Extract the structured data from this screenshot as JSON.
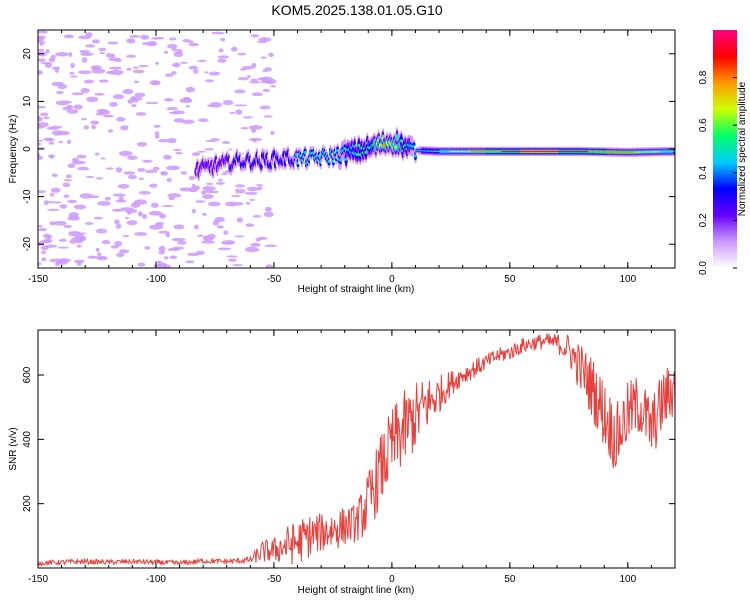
{
  "title": "KOM5.2025.138.01.05.G10",
  "chart_data": [
    {
      "type": "heatmap",
      "xlabel": "Height of straight line (km)",
      "ylabel": "Frequency (Hz)",
      "xlim": [
        -150,
        120
      ],
      "ylim": [
        -25,
        25
      ],
      "xticks": [
        -150,
        -100,
        -50,
        0,
        50,
        100
      ],
      "yticks": [
        -20,
        -10,
        0,
        10,
        20
      ],
      "colorbar": {
        "label": "Normalized spectral amplitude",
        "range": [
          0,
          1
        ],
        "ticks": [
          0.0,
          0.2,
          0.4,
          0.6,
          0.8
        ],
        "colors": [
          "#ffffff",
          "#cc99ff",
          "#6600ff",
          "#0000ff",
          "#00ccff",
          "#00ff66",
          "#ccff00",
          "#ff9900",
          "#ff0000",
          "#ff0080"
        ]
      },
      "ridge": {
        "x": [
          -83,
          -75,
          -65,
          -55,
          -45,
          -35,
          -25,
          -15,
          -8,
          -3,
          2,
          6,
          10,
          20,
          40,
          60,
          80,
          100,
          120
        ],
        "y": [
          -4.5,
          -3.5,
          -2.5,
          -2.5,
          -2.0,
          -2.0,
          -1.5,
          -0.5,
          0.5,
          1.3,
          1.5,
          0.3,
          -0.3,
          -0.5,
          -0.5,
          -0.5,
          -0.5,
          -0.7,
          -0.5
        ],
        "amplitude": [
          0.25,
          0.25,
          0.3,
          0.3,
          0.35,
          0.45,
          0.45,
          0.5,
          0.55,
          0.75,
          0.6,
          0.5,
          0.45,
          0.55,
          0.8,
          0.9,
          0.85,
          0.75,
          0.55
        ]
      }
    },
    {
      "type": "line",
      "xlabel": "Height of straight line (km)",
      "ylabel": "SNR (v/v)",
      "xlim": [
        -150,
        120
      ],
      "ylim": [
        0,
        740
      ],
      "xticks": [
        -150,
        -100,
        -50,
        0,
        50,
        100
      ],
      "yticks": [
        200,
        400,
        600
      ],
      "color": "#e8413d",
      "x": [
        -150,
        -140,
        -130,
        -120,
        -110,
        -100,
        -90,
        -80,
        -70,
        -60,
        -55,
        -50,
        -45,
        -40,
        -35,
        -30,
        -25,
        -20,
        -15,
        -10,
        -5,
        0,
        5,
        10,
        15,
        20,
        25,
        30,
        35,
        40,
        45,
        50,
        55,
        60,
        65,
        70,
        75,
        80,
        85,
        90,
        95,
        100,
        105,
        110,
        115,
        120
      ],
      "y": [
        15,
        18,
        20,
        18,
        20,
        18,
        15,
        22,
        20,
        25,
        50,
        55,
        70,
        80,
        100,
        110,
        120,
        130,
        140,
        200,
        300,
        380,
        430,
        470,
        510,
        540,
        575,
        600,
        620,
        640,
        660,
        670,
        690,
        700,
        705,
        700,
        680,
        620,
        560,
        480,
        400,
        480,
        510,
        430,
        520,
        560
      ],
      "noise": [
        8,
        8,
        8,
        8,
        8,
        8,
        8,
        8,
        8,
        10,
        35,
        40,
        60,
        70,
        70,
        60,
        70,
        60,
        60,
        100,
        110,
        120,
        120,
        110,
        90,
        60,
        40,
        30,
        30,
        25,
        25,
        25,
        25,
        25,
        25,
        30,
        50,
        80,
        100,
        110,
        110,
        100,
        100,
        100,
        100,
        90
      ]
    }
  ]
}
